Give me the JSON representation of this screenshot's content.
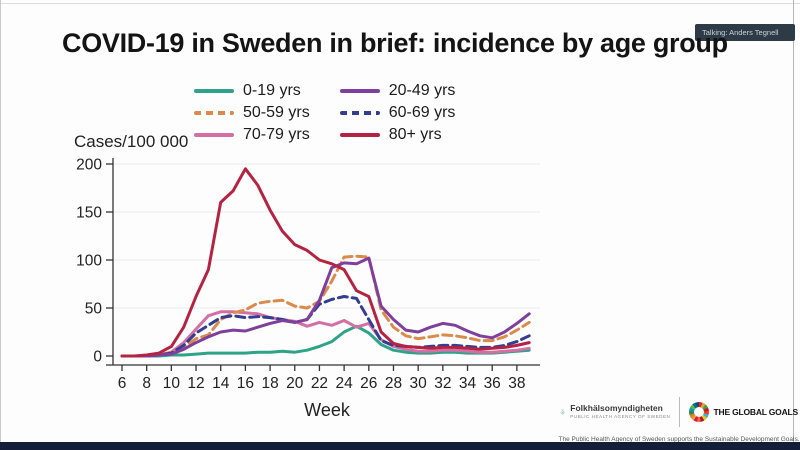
{
  "overlay": {
    "talking_badge": "Talking: Anders Tegnell"
  },
  "slide": {
    "title": "COVID-19 in Sweden in brief: incidence by age group",
    "footer": {
      "agency_name": "Folkhälsomyndigheten",
      "agency_subtitle": "PUBLIC HEALTH AGENCY OF SWEDEN",
      "global_goals_label": "THE GLOBAL GOALS",
      "support_line": "The Public Health Agency of Sweden supports the Sustainable Development Goals."
    }
  },
  "chart_data": {
    "type": "line",
    "title": "",
    "ylabel": "Cases/100 000",
    "xlabel": "Week",
    "ylim": [
      0,
      210
    ],
    "xlim": [
      5,
      40
    ],
    "grid": "faint horizontal lines at 50/100/150/200",
    "legend_position": "above plot, two columns",
    "y_ticks": [
      0,
      50,
      100,
      150,
      200
    ],
    "x_ticks": [
      6,
      8,
      10,
      12,
      14,
      16,
      18,
      20,
      22,
      24,
      26,
      28,
      30,
      32,
      34,
      36,
      38
    ],
    "x": [
      6,
      7,
      8,
      9,
      10,
      11,
      12,
      13,
      14,
      15,
      16,
      17,
      18,
      19,
      20,
      21,
      22,
      23,
      24,
      25,
      26,
      27,
      28,
      29,
      30,
      31,
      32,
      33,
      34,
      35,
      36,
      37,
      38,
      39
    ],
    "series": [
      {
        "name": "0-19 yrs",
        "color": "#2fa389",
        "dash": "solid",
        "values": [
          0,
          0,
          0,
          0,
          1,
          1,
          2,
          3,
          3,
          3,
          3,
          4,
          4,
          5,
          4,
          6,
          10,
          15,
          25,
          31,
          24,
          12,
          6,
          4,
          3,
          3,
          4,
          4,
          3,
          3,
          3,
          4,
          5,
          6
        ]
      },
      {
        "name": "20-49 yrs",
        "color": "#7f3f9d",
        "dash": "solid",
        "values": [
          0,
          0,
          0,
          1,
          2,
          7,
          14,
          20,
          25,
          27,
          26,
          30,
          34,
          37,
          35,
          38,
          58,
          92,
          97,
          96,
          102,
          52,
          38,
          27,
          25,
          30,
          34,
          32,
          26,
          21,
          19,
          25,
          34,
          44
        ]
      },
      {
        "name": "50-59 yrs",
        "color": "#dc8a4a",
        "dash": "dashed",
        "values": [
          0,
          0,
          0,
          1,
          4,
          9,
          18,
          22,
          38,
          45,
          48,
          55,
          57,
          58,
          52,
          50,
          57,
          78,
          103,
          104,
          103,
          48,
          30,
          21,
          18,
          20,
          22,
          21,
          19,
          16,
          16,
          20,
          27,
          35
        ]
      },
      {
        "name": "60-69 yrs",
        "color": "#333d91",
        "dash": "dashed",
        "values": [
          0,
          0,
          0,
          1,
          3,
          11,
          24,
          32,
          40,
          42,
          40,
          41,
          40,
          38,
          35,
          38,
          54,
          59,
          62,
          60,
          38,
          16,
          11,
          10,
          9,
          10,
          11,
          11,
          10,
          9,
          9,
          11,
          15,
          21
        ]
      },
      {
        "name": "70-79 yrs",
        "color": "#d36fa4",
        "dash": "solid",
        "values": [
          0,
          0,
          0,
          1,
          4,
          14,
          28,
          42,
          46,
          46,
          45,
          44,
          40,
          38,
          36,
          31,
          35,
          32,
          37,
          30,
          34,
          17,
          10,
          7,
          5,
          5,
          6,
          6,
          5,
          4,
          4,
          5,
          6,
          8
        ]
      },
      {
        "name": "80+ yrs",
        "color": "#b52343",
        "dash": "solid",
        "values": [
          0,
          0,
          1,
          3,
          10,
          30,
          62,
          90,
          160,
          172,
          195,
          178,
          152,
          130,
          116,
          110,
          100,
          96,
          90,
          68,
          62,
          25,
          13,
          10,
          9,
          8,
          9,
          9,
          8,
          7,
          8,
          9,
          11,
          14
        ]
      }
    ]
  }
}
